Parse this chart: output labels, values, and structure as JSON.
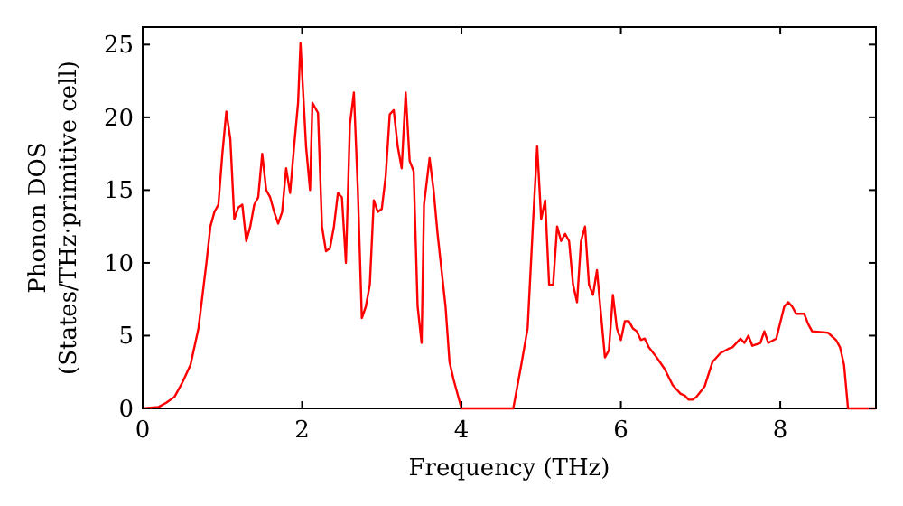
{
  "chart_data": {
    "type": "line",
    "xlabel": "Frequency (THz)",
    "ylabel": "Phonon DOS\n(States/THz·primitive cell)",
    "xlim": [
      0,
      9.2
    ],
    "ylim": [
      0,
      26.2
    ],
    "xticks": [
      0,
      2,
      4,
      6,
      8
    ],
    "yticks": [
      0,
      5,
      10,
      15,
      20,
      25
    ],
    "grid": false,
    "marker": "none",
    "line_style": "solid",
    "series": [
      {
        "color": "#ff0000",
        "x": [
          0,
          0.2,
          0.3,
          0.4,
          0.5,
          0.6,
          0.7,
          0.8,
          0.85,
          0.9,
          0.95,
          1.0,
          1.05,
          1.1,
          1.15,
          1.2,
          1.25,
          1.3,
          1.35,
          1.4,
          1.45,
          1.5,
          1.55,
          1.6,
          1.65,
          1.7,
          1.75,
          1.8,
          1.85,
          1.9,
          1.95,
          1.98,
          2.05,
          2.1,
          2.13,
          2.2,
          2.25,
          2.3,
          2.35,
          2.4,
          2.45,
          2.5,
          2.55,
          2.6,
          2.65,
          2.7,
          2.75,
          2.8,
          2.85,
          2.9,
          2.95,
          3.0,
          3.05,
          3.1,
          3.15,
          3.2,
          3.25,
          3.3,
          3.35,
          3.4,
          3.45,
          3.5,
          3.53,
          3.6,
          3.65,
          3.7,
          3.8,
          3.85,
          3.9,
          4.0,
          4.05,
          4.65,
          4.75,
          4.83,
          4.9,
          4.95,
          5.0,
          5.05,
          5.1,
          5.15,
          5.2,
          5.25,
          5.3,
          5.35,
          5.4,
          5.45,
          5.5,
          5.55,
          5.6,
          5.65,
          5.7,
          5.75,
          5.8,
          5.85,
          5.9,
          5.95,
          6.0,
          6.05,
          6.1,
          6.15,
          6.2,
          6.25,
          6.3,
          6.35,
          6.45,
          6.55,
          6.65,
          6.75,
          6.8,
          6.85,
          6.9,
          6.95,
          7.05,
          7.15,
          7.25,
          7.35,
          7.4,
          7.5,
          7.55,
          7.6,
          7.65,
          7.75,
          7.8,
          7.85,
          7.95,
          8.05,
          8.1,
          8.15,
          8.2,
          8.3,
          8.35,
          8.4,
          8.6,
          8.7,
          8.75,
          8.8,
          8.85,
          9.2
        ],
        "values": [
          0,
          0.1,
          0.4,
          0.8,
          1.8,
          3,
          5.5,
          10,
          12.5,
          13.5,
          14,
          17.5,
          20.4,
          18.5,
          13,
          13.8,
          14,
          11.5,
          12.5,
          14,
          14.5,
          17.5,
          15,
          14.5,
          13.5,
          12.7,
          13.5,
          16.5,
          14.8,
          18,
          21,
          25.1,
          18,
          15,
          21,
          20.3,
          12.5,
          10.8,
          11,
          12.5,
          14.8,
          14.5,
          10,
          19.5,
          21.7,
          15,
          6.2,
          7,
          8.5,
          14.3,
          13.5,
          13.7,
          16,
          20.2,
          20.5,
          18,
          16.5,
          21.7,
          17,
          16.3,
          7,
          4.5,
          14,
          17.2,
          15,
          12,
          7,
          3.2,
          2,
          0,
          0,
          0,
          3,
          5.5,
          13,
          18,
          13,
          14.3,
          8.5,
          8.5,
          12.5,
          11.5,
          12,
          11.5,
          8.5,
          7.3,
          11.5,
          12.5,
          8.5,
          7.8,
          9.5,
          6.5,
          3.5,
          4,
          7.8,
          5.5,
          4.7,
          6,
          6,
          5.5,
          5.3,
          4.7,
          4.8,
          4.2,
          3.5,
          2.7,
          1.6,
          1,
          0.9,
          0.6,
          0.6,
          0.8,
          1.5,
          3.2,
          3.8,
          4.1,
          4.2,
          4.8,
          4.5,
          5,
          4.3,
          4.5,
          5.3,
          4.5,
          4.8,
          7,
          7.3,
          7,
          6.5,
          6.5,
          5.8,
          5.3,
          5.2,
          4.7,
          4.2,
          3,
          0,
          0
        ]
      }
    ]
  }
}
